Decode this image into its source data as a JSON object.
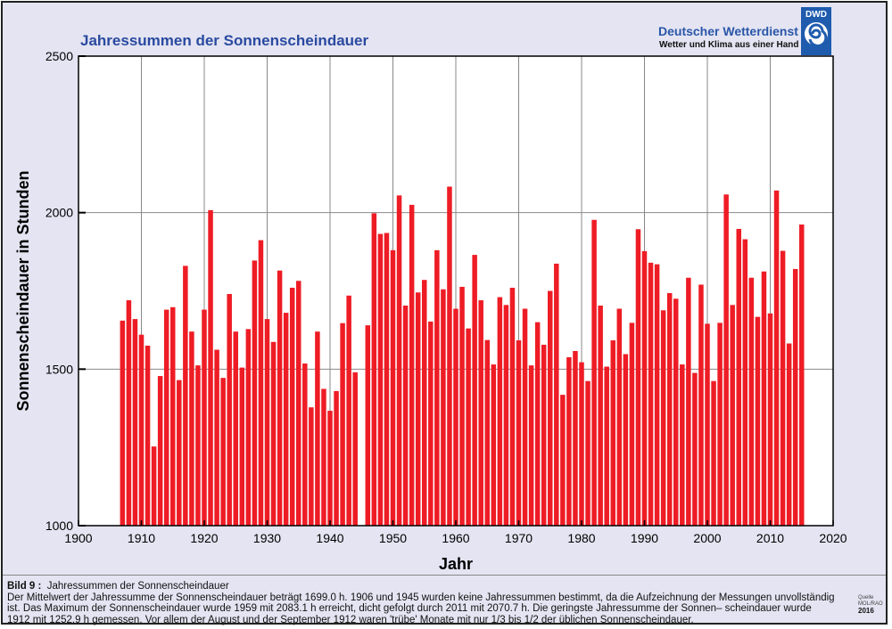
{
  "header": {
    "title": "Jahressummen der Sonnenscheindauer",
    "logo_name": "Deutscher Wetterdienst",
    "logo_tagline": "Wetter und Klima aus einer Hand",
    "logo_badge": "DWD"
  },
  "caption": {
    "label": "Bild 9 :",
    "title": "Jahressummen der Sonnenscheindauer",
    "text": "Der Mittelwert der Jahressumme der Sonnenscheindauer beträgt 1699.0 h. 1906 und 1945 wurden keine Jahressummen bestimmt, da die Aufzeichnung der Messungen unvollständig ist. Das Maximum der Sonnenscheindauer wurde 1959 mit 2083.1 h erreicht, dicht gefolgt durch 2011 mit 2070.7 h. Die geringste Jahressumme der Sonnen– scheindauer wurde 1912 mit 1252.9 h gemessen. Vor allem der August und der September 1912 waren 'trübe' Monate mit nur 1/3 bis 1/2 der üblichen Sonnenscheindauer."
  },
  "source": {
    "label": "Quelle",
    "org": "MOL/RAO",
    "year": "2016"
  },
  "colors": {
    "bar": "#ee1c25",
    "title": "#2a4aa0",
    "background": "#e4e4f2"
  },
  "chart_data": {
    "type": "bar",
    "title": "Jahressummen der Sonnenscheindauer",
    "xlabel": "Jahr",
    "ylabel": "Sonnenscheindauer in Stunden",
    "xlim": [
      1900,
      2020
    ],
    "ylim": [
      1000,
      2500
    ],
    "xticks": [
      1900,
      1910,
      1920,
      1930,
      1940,
      1950,
      1960,
      1970,
      1980,
      1990,
      2000,
      2010,
      2020
    ],
    "yticks": [
      1000,
      1500,
      2000,
      2500
    ],
    "grid": true,
    "x": [
      1907,
      1908,
      1909,
      1910,
      1911,
      1912,
      1913,
      1914,
      1915,
      1916,
      1917,
      1918,
      1919,
      1920,
      1921,
      1922,
      1923,
      1924,
      1925,
      1926,
      1927,
      1928,
      1929,
      1930,
      1931,
      1932,
      1933,
      1934,
      1935,
      1936,
      1937,
      1938,
      1939,
      1940,
      1941,
      1942,
      1943,
      1944,
      1946,
      1947,
      1948,
      1949,
      1950,
      1951,
      1952,
      1953,
      1954,
      1955,
      1956,
      1957,
      1958,
      1959,
      1960,
      1961,
      1962,
      1963,
      1964,
      1965,
      1966,
      1967,
      1968,
      1969,
      1970,
      1971,
      1972,
      1973,
      1974,
      1975,
      1976,
      1977,
      1978,
      1979,
      1980,
      1981,
      1982,
      1983,
      1984,
      1985,
      1986,
      1987,
      1988,
      1989,
      1990,
      1991,
      1992,
      1993,
      1994,
      1995,
      1996,
      1997,
      1998,
      1999,
      2000,
      2001,
      2002,
      2003,
      2004,
      2005,
      2006,
      2007,
      2008,
      2009,
      2010,
      2011,
      2012,
      2013,
      2014,
      2015
    ],
    "values": [
      1655,
      1720,
      1660,
      1610,
      1575,
      1252.9,
      1478,
      1690,
      1698,
      1465,
      1830,
      1620,
      1512,
      1690,
      2008,
      1562,
      1472,
      1740,
      1620,
      1505,
      1628,
      1847,
      1912,
      1660,
      1587,
      1815,
      1680,
      1760,
      1782,
      1518,
      1378,
      1620,
      1437,
      1367,
      1430,
      1647,
      1735,
      1490,
      1640,
      1998,
      1932,
      1935,
      1880,
      2055,
      1703,
      2025,
      1745,
      1785,
      1652,
      1880,
      1755,
      2083.1,
      1693,
      1763,
      1630,
      1865,
      1720,
      1593,
      1515,
      1730,
      1705,
      1760,
      1592,
      1693,
      1512,
      1650,
      1578,
      1750,
      1837,
      1418,
      1538,
      1558,
      1522,
      1462,
      1977,
      1703,
      1508,
      1592,
      1693,
      1548,
      1648,
      1947,
      1877,
      1840,
      1835,
      1688,
      1743,
      1725,
      1515,
      1792,
      1488,
      1770,
      1645,
      1462,
      1648,
      2058,
      1705,
      1948,
      1915,
      1792,
      1667,
      1812,
      1678,
      2070.7,
      1878,
      1582,
      1820,
      1962
    ]
  }
}
